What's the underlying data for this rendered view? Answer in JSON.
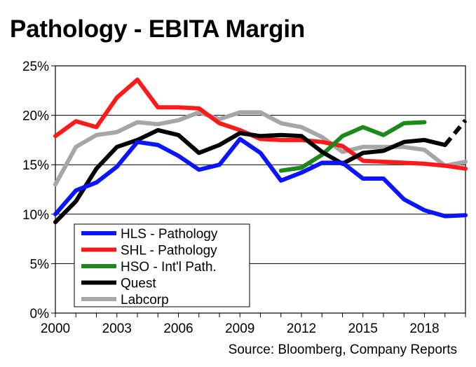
{
  "chart_data": {
    "type": "line",
    "title": "Pathology - EBITA Margin",
    "source": "Source: Bloomberg, Company Reports",
    "xlim": [
      2000,
      2020
    ],
    "ylim": [
      0,
      25
    ],
    "x_ticks": [
      "2000",
      "2003",
      "2006",
      "2009",
      "2012",
      "2015",
      "2018"
    ],
    "x_tick_values": [
      2000,
      2003,
      2006,
      2009,
      2012,
      2015,
      2018
    ],
    "y_ticks": [
      "0%",
      "5%",
      "10%",
      "15%",
      "20%",
      "25%"
    ],
    "y_tick_values": [
      0,
      5,
      10,
      15,
      20,
      25
    ],
    "grid": "horizontal",
    "legend": "bottom-left",
    "series": [
      {
        "name": "HLS - Pathology",
        "color": "#0a14ff",
        "x": [
          2000,
          2001,
          2002,
          2003,
          2004,
          2005,
          2006,
          2007,
          2008,
          2009,
          2010,
          2011,
          2012,
          2013,
          2014,
          2015,
          2016,
          2017,
          2018,
          2019,
          2020
        ],
        "values": [
          10.0,
          12.4,
          13.2,
          14.8,
          17.3,
          17.0,
          15.9,
          14.5,
          15.0,
          17.6,
          16.2,
          13.4,
          14.2,
          15.2,
          15.2,
          13.6,
          13.6,
          11.5,
          10.4,
          9.8,
          9.9
        ]
      },
      {
        "name": "SHL - Pathology",
        "color": "#ff1a1a",
        "x": [
          2000,
          2001,
          2002,
          2003,
          2004,
          2005,
          2006,
          2007,
          2008,
          2009,
          2010,
          2011,
          2012,
          2013,
          2014,
          2015,
          2016,
          2017,
          2018,
          2019,
          2020
        ],
        "values": [
          17.9,
          19.4,
          18.8,
          21.8,
          23.6,
          20.8,
          20.8,
          20.7,
          19.2,
          18.5,
          17.6,
          17.5,
          17.5,
          17.3,
          16.9,
          15.4,
          15.3,
          15.2,
          15.1,
          14.9,
          14.6
        ]
      },
      {
        "name": "HSO - Int'l Path.",
        "color": "#1a8a1a",
        "x": [
          2011,
          2012,
          2013,
          2014,
          2015,
          2016,
          2017,
          2018
        ],
        "values": [
          14.4,
          14.7,
          16.0,
          17.9,
          18.8,
          18.0,
          19.2,
          19.3
        ]
      },
      {
        "name": "Quest",
        "color": "#000000",
        "x": [
          2000,
          2001,
          2002,
          2003,
          2004,
          2005,
          2006,
          2007,
          2008,
          2009,
          2010,
          2011,
          2012,
          2013,
          2014,
          2015,
          2016,
          2017,
          2018,
          2019
        ],
        "values": [
          9.2,
          11.3,
          14.6,
          16.8,
          17.5,
          18.5,
          18.0,
          16.2,
          17.0,
          18.2,
          17.9,
          18.0,
          17.9,
          16.3,
          15.1,
          16.2,
          16.4,
          17.3,
          17.5,
          17.0
        ],
        "projection": {
          "x": [
            2019,
            2020
          ],
          "values": [
            17.0,
            19.5
          ]
        }
      },
      {
        "name": "Labcorp",
        "color": "#a6a6a6",
        "x": [
          2000,
          2001,
          2002,
          2003,
          2004,
          2005,
          2006,
          2007,
          2008,
          2009,
          2010,
          2011,
          2012,
          2013,
          2014,
          2015,
          2016,
          2017,
          2018,
          2019,
          2020
        ],
        "values": [
          13.0,
          16.8,
          18.0,
          18.3,
          19.3,
          19.1,
          19.5,
          20.3,
          19.6,
          20.3,
          20.3,
          19.2,
          18.8,
          17.8,
          16.3,
          16.8,
          16.8,
          16.8,
          16.5,
          14.9,
          15.3
        ]
      }
    ]
  }
}
